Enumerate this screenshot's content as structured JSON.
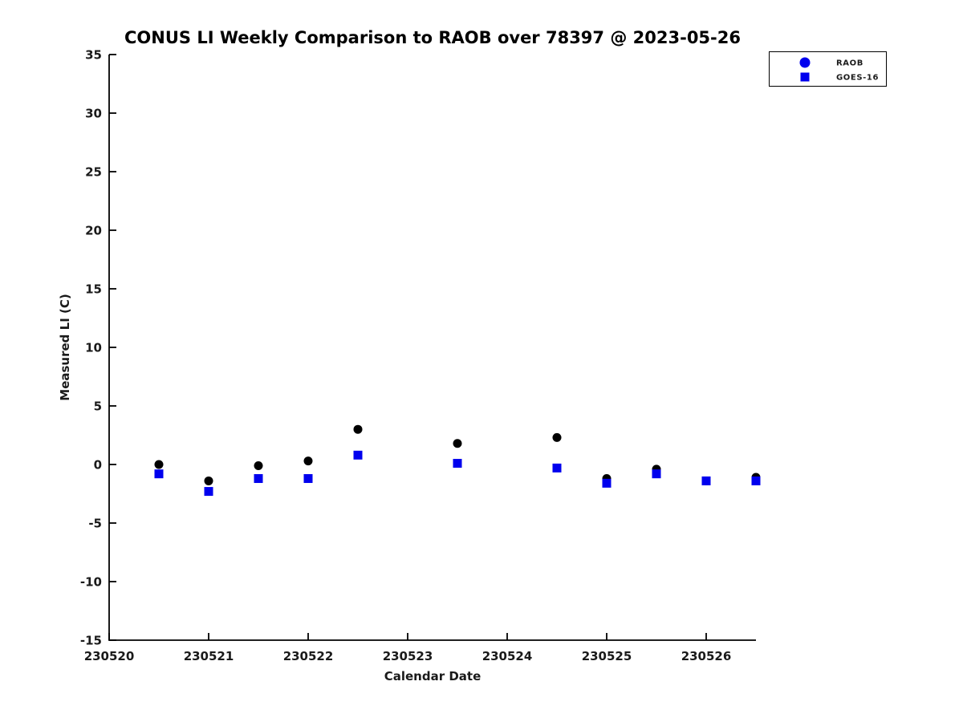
{
  "chart_data": {
    "type": "scatter",
    "title": "CONUS LI Weekly Comparison to RAOB over 78397 @ 2023-05-26",
    "xlabel": "Calendar Date",
    "ylabel": "Measured LI (C)",
    "xlim": [
      230520,
      230526.5
    ],
    "ylim": [
      -15,
      35
    ],
    "x_ticks": [
      230520,
      230521,
      230522,
      230523,
      230524,
      230525,
      230526
    ],
    "x_tick_labels": [
      "230520",
      "230521",
      "230522",
      "230523",
      "230524",
      "230525",
      "230526"
    ],
    "y_ticks": [
      35,
      30,
      25,
      20,
      15,
      10,
      5,
      0,
      -5,
      -10,
      -15
    ],
    "y_tick_labels": [
      "35",
      "30",
      "25",
      "20",
      "15",
      "10",
      "5",
      "0",
      "-5",
      "-10",
      "-15"
    ],
    "grid": false,
    "legend_position": "top-right",
    "x": [
      230520.5,
      230521,
      230521.5,
      230522,
      230522.5,
      230523.5,
      230524.5,
      230525,
      230525.5,
      230526,
      230526.5
    ],
    "series": [
      {
        "name": "RAOB",
        "marker": "circle",
        "color": "#000000",
        "legend_color": "#0000EE",
        "values": [
          0.0,
          -1.4,
          -0.1,
          0.3,
          3.0,
          1.8,
          2.3,
          -1.2,
          -0.4,
          -1.4,
          -1.1
        ]
      },
      {
        "name": "GOES-16",
        "marker": "square",
        "color": "#0000EE",
        "legend_color": "#0000EE",
        "values": [
          -0.8,
          -2.3,
          -1.2,
          -1.2,
          0.8,
          0.1,
          -0.3,
          -1.6,
          -0.8,
          -1.4,
          -1.4
        ]
      }
    ],
    "colors": {
      "axis": "#000000",
      "background": "#ffffff",
      "legend_border": "#000000"
    }
  }
}
